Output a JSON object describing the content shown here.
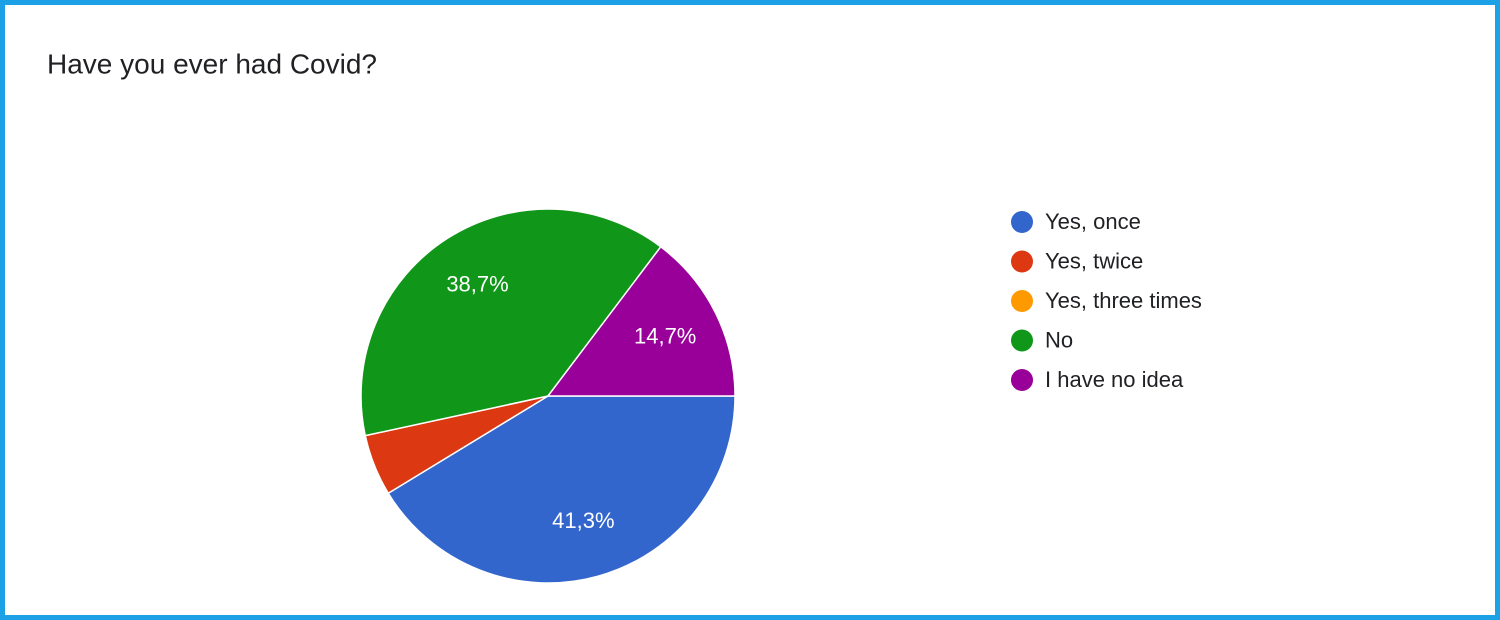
{
  "chart_data": {
    "type": "pie",
    "title": "Have you ever had Covid?",
    "categories": [
      "Yes, once",
      "Yes, twice",
      "Yes, three times",
      "No",
      "I have no idea"
    ],
    "values": [
      41.3,
      5.3,
      0,
      38.7,
      14.7
    ],
    "value_labels": [
      "41,3%",
      null,
      null,
      "38,7%",
      "14,7%"
    ],
    "colors": [
      "#3366cc",
      "#dc3912",
      "#ff9900",
      "#109618",
      "#990099"
    ],
    "legend": "right"
  }
}
